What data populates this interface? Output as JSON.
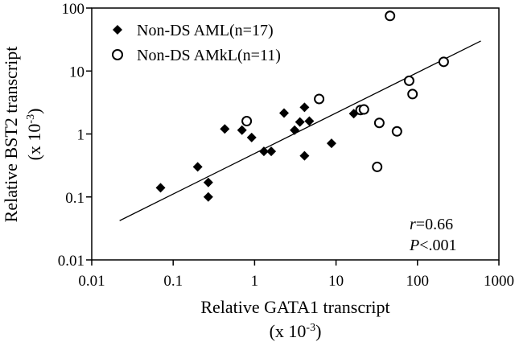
{
  "chart_data": {
    "type": "scatter",
    "x_scale": "log",
    "y_scale": "log",
    "xlim": [
      0.01,
      1000
    ],
    "ylim": [
      0.01,
      100
    ],
    "x_ticks": [
      0.01,
      0.1,
      1,
      10,
      100,
      1000
    ],
    "y_ticks": [
      0.01,
      0.1,
      1,
      10,
      100
    ],
    "x_tick_labels": [
      "0.01",
      "0.1",
      "1",
      "10",
      "100",
      "1000"
    ],
    "y_tick_labels": [
      "0.01",
      "0.1",
      "1",
      "10",
      "100"
    ],
    "xlabel_line1": "Relative GATA1 transcript",
    "xlabel_line2_prefix": "(x 10",
    "xlabel_line2_exp": "-3",
    "xlabel_line2_suffix": ")",
    "ylabel_line1": "Relative BST2 transcript",
    "ylabel_line2_prefix": "(x 10",
    "ylabel_line2_exp": "-3",
    "ylabel_line2_suffix": ")",
    "legend_position": "top-left",
    "grid": false,
    "series": [
      {
        "name": "Non-DS AML(n=17)",
        "marker": "filled-diamond",
        "points": [
          [
            0.07,
            0.14
          ],
          [
            0.2,
            0.3
          ],
          [
            0.27,
            0.17
          ],
          [
            0.27,
            0.1
          ],
          [
            0.43,
            1.2
          ],
          [
            0.7,
            1.15
          ],
          [
            0.92,
            0.88
          ],
          [
            1.3,
            0.53
          ],
          [
            1.6,
            0.53
          ],
          [
            2.3,
            2.15
          ],
          [
            3.1,
            1.15
          ],
          [
            3.6,
            1.55
          ],
          [
            4.1,
            2.65
          ],
          [
            4.1,
            0.45
          ],
          [
            4.7,
            1.6
          ],
          [
            8.8,
            0.71
          ],
          [
            16.5,
            2.1
          ]
        ]
      },
      {
        "name": "Non-DS AMkL(n=11)",
        "marker": "open-circle",
        "points": [
          [
            0.8,
            1.6
          ],
          [
            6.2,
            3.6
          ],
          [
            20,
            2.4
          ],
          [
            22,
            2.45
          ],
          [
            32,
            0.3
          ],
          [
            34,
            1.5
          ],
          [
            46,
            75
          ],
          [
            56,
            1.1
          ],
          [
            79,
            7
          ],
          [
            87,
            4.3
          ],
          [
            210,
            14
          ]
        ]
      }
    ],
    "regression_line": {
      "x": [
        0.022,
        600
      ],
      "y": [
        0.042,
        30
      ]
    },
    "annotation_r_label": "r",
    "annotation_r_value": "=0.66",
    "annotation_p_label": "P",
    "annotation_p_value": "<.001"
  }
}
